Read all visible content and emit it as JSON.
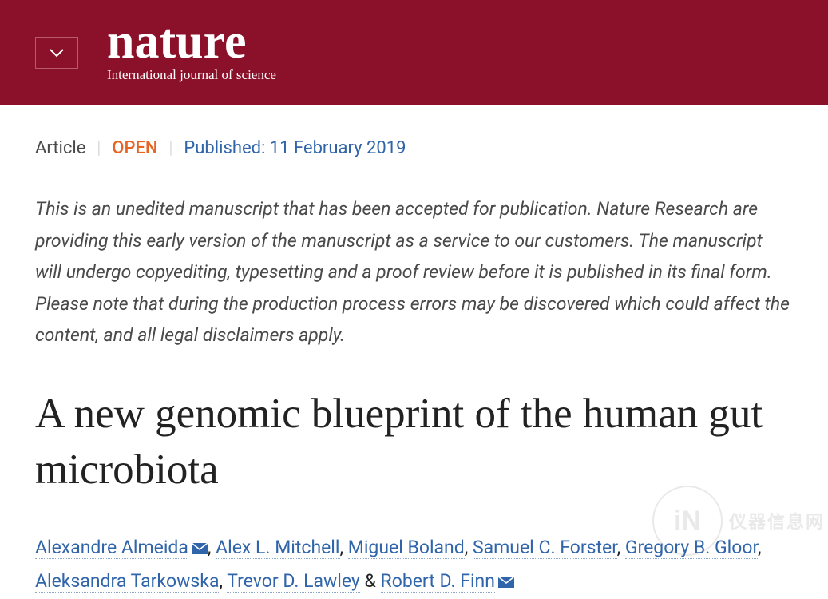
{
  "header": {
    "logo_text": "nature",
    "logo_subtitle": "International journal of science"
  },
  "meta": {
    "article_label": "Article",
    "separator": "|",
    "open_label": "OPEN",
    "published_label": "Published: 11 February 2019"
  },
  "notice": "This is an unedited manuscript that has been accepted for publication. Nature Research are providing this early version of the manuscript as a service to our customers. The manuscript will undergo copyediting, typesetting and a proof review before it is published in its final form. Please note that during the production process errors may be discovered which could affect the content, and all legal disclaimers apply.",
  "title": "A new genomic blueprint of the human gut microbiota",
  "authors": [
    {
      "name": "Alexandre Almeida",
      "mail": true,
      "suffix": ", "
    },
    {
      "name": "Alex L. Mitchell",
      "mail": false,
      "suffix": ", "
    },
    {
      "name": "Miguel Boland",
      "mail": false,
      "suffix": ", "
    },
    {
      "name": "Samuel C. Forster",
      "mail": false,
      "suffix": ", "
    },
    {
      "name": "Gregory B. Gloor",
      "mail": false,
      "suffix": ", "
    },
    {
      "name": "Aleksandra Tarkowska",
      "mail": false,
      "suffix": ", "
    },
    {
      "name": "Trevor D. Lawley",
      "mail": false,
      "suffix": " & "
    },
    {
      "name": "Robert D. Finn",
      "mail": true,
      "suffix": ""
    }
  ],
  "colors": {
    "header_bg": "#8a1129",
    "link": "#3065aa",
    "open": "#e86424"
  },
  "watermark": {
    "badge": "iN",
    "text": "仪器信息网"
  }
}
